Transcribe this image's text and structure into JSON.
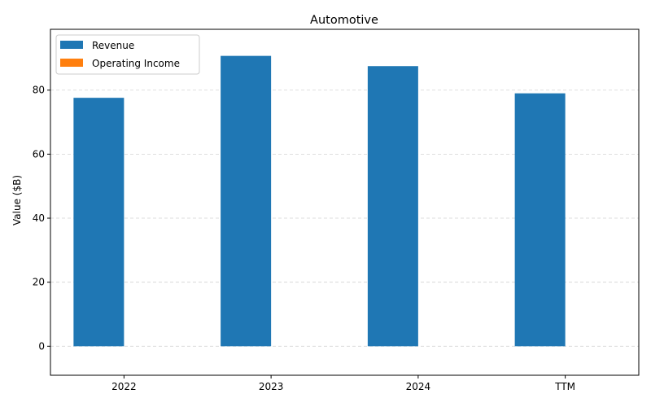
{
  "chart_data": {
    "type": "bar",
    "title": "Automotive",
    "xlabel": "",
    "ylabel": "Value ($B)",
    "categories": [
      "2022",
      "2023",
      "2024",
      "TTM"
    ],
    "series": [
      {
        "name": "Revenue",
        "color": "#1f77b4",
        "values": [
          77.6,
          90.7,
          87.5,
          79.0
        ]
      },
      {
        "name": "Operating Income",
        "color": "#ff7f0e",
        "values": [
          0,
          0,
          0,
          0
        ]
      }
    ],
    "ylim": [
      -9.07,
      99.0
    ],
    "yticks": [
      0,
      20,
      40,
      60,
      80
    ],
    "ytick_labels": [
      "0",
      "20",
      "40",
      "60",
      "80"
    ],
    "grid": "y-dashed",
    "legend": "top-left"
  }
}
